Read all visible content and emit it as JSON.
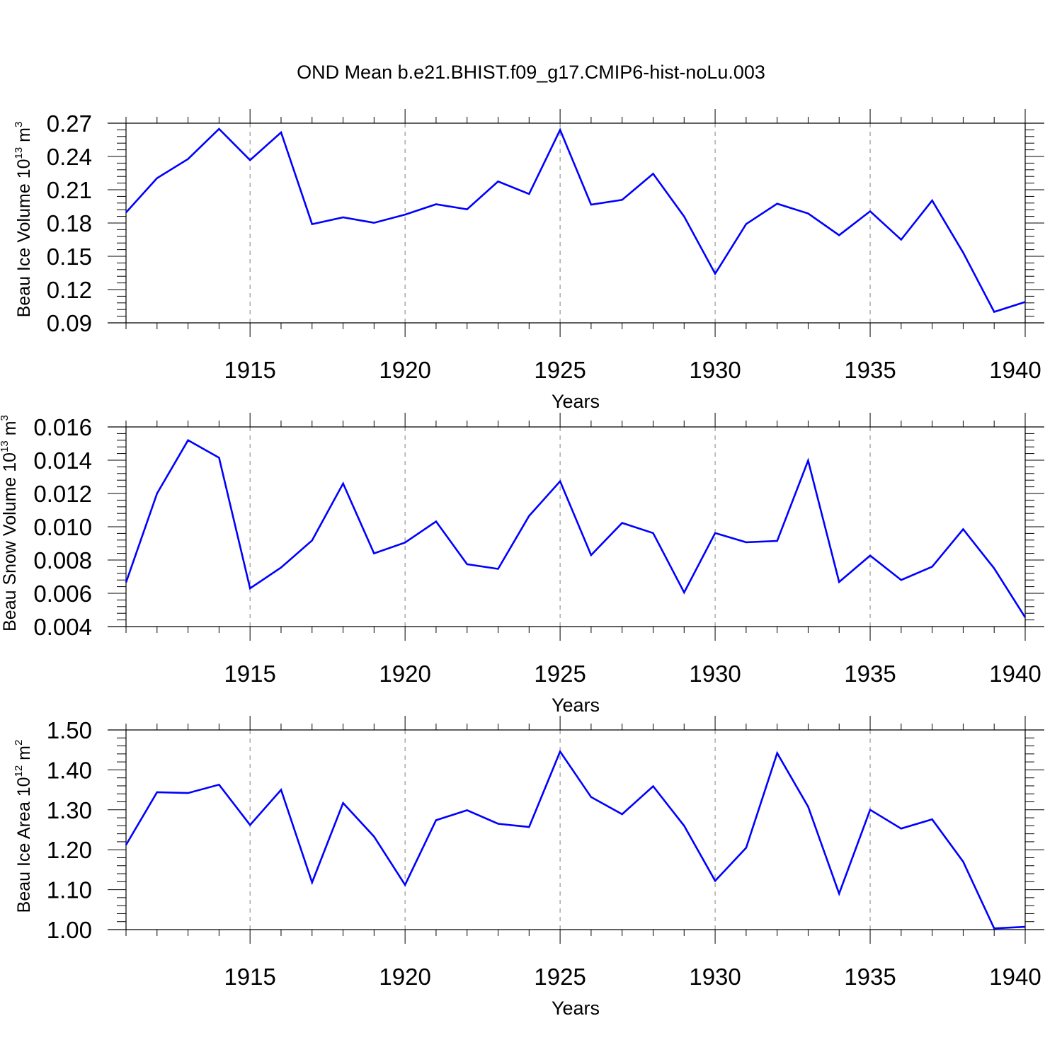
{
  "title": "OND Mean b.e21.BHIST.f09_g17.CMIP6-hist-noLu.003",
  "colors": {
    "line": "#0000ff",
    "axis": "#000000",
    "grid": "#808080"
  },
  "chart_data": [
    {
      "type": "line",
      "ylabel": {
        "main": "Beau Ice Volume 10",
        "exp": "13",
        "unit": " m",
        "unit_exp": "3"
      },
      "xlabel": "Years",
      "xlim": [
        1911,
        1940
      ],
      "xticks": [
        1915,
        1920,
        1925,
        1930,
        1935,
        1940
      ],
      "ylim": [
        0.09,
        0.27
      ],
      "yticks": [
        0.09,
        0.12,
        0.15,
        0.18,
        0.21,
        0.24,
        0.27
      ],
      "ytick_labels": [
        "0.09",
        "0.12",
        "0.15",
        "0.18",
        "0.21",
        "0.24",
        "0.27"
      ],
      "grid": "vertical dashed at major x ticks",
      "x": [
        1911,
        1912,
        1913,
        1914,
        1915,
        1916,
        1917,
        1918,
        1919,
        1920,
        1921,
        1922,
        1923,
        1924,
        1925,
        1926,
        1927,
        1928,
        1929,
        1930,
        1931,
        1932,
        1933,
        1934,
        1935,
        1936,
        1937,
        1938,
        1939,
        1940
      ],
      "values": [
        0.1895,
        0.2205,
        0.2377,
        0.2648,
        0.2367,
        0.2617,
        0.179,
        0.1851,
        0.1802,
        0.1876,
        0.1969,
        0.1924,
        0.2175,
        0.2062,
        0.264,
        0.1966,
        0.2009,
        0.2244,
        0.1859,
        0.1343,
        0.1791,
        0.1974,
        0.1886,
        0.169,
        0.1906,
        0.165,
        0.2003,
        0.1533,
        0.0999,
        0.1088
      ]
    },
    {
      "type": "line",
      "ylabel": {
        "main": "Beau Snow Volume 10",
        "exp": "13",
        "unit": " m",
        "unit_exp": "3"
      },
      "xlabel": "Years",
      "xlim": [
        1911,
        1940
      ],
      "xticks": [
        1915,
        1920,
        1925,
        1930,
        1935,
        1940
      ],
      "ylim": [
        0.004,
        0.016
      ],
      "yticks": [
        0.004,
        0.006,
        0.008,
        0.01,
        0.012,
        0.014,
        0.016
      ],
      "ytick_labels": [
        "0.004",
        "0.006",
        "0.008",
        "0.010",
        "0.012",
        "0.014",
        "0.016"
      ],
      "grid": "vertical dashed at major x ticks",
      "x": [
        1911,
        1912,
        1913,
        1914,
        1915,
        1916,
        1917,
        1918,
        1919,
        1920,
        1921,
        1922,
        1923,
        1924,
        1925,
        1926,
        1927,
        1928,
        1929,
        1930,
        1931,
        1932,
        1933,
        1934,
        1935,
        1936,
        1937,
        1938,
        1939,
        1940
      ],
      "values": [
        0.00665,
        0.012,
        0.0152,
        0.01415,
        0.0063,
        0.00755,
        0.00918,
        0.0126,
        0.0084,
        0.00905,
        0.01032,
        0.00775,
        0.00747,
        0.01065,
        0.01273,
        0.0083,
        0.01023,
        0.00962,
        0.00605,
        0.00962,
        0.00907,
        0.00915,
        0.01398,
        0.00668,
        0.00827,
        0.0068,
        0.0076,
        0.00985,
        0.0075,
        0.00455
      ]
    },
    {
      "type": "line",
      "ylabel": {
        "main": "Beau Ice Area 10",
        "exp": "12",
        "unit": " m",
        "unit_exp": "2"
      },
      "xlabel": "Years",
      "xlim": [
        1911,
        1940
      ],
      "xticks": [
        1915,
        1920,
        1925,
        1930,
        1935,
        1940
      ],
      "ylim": [
        1.0,
        1.5
      ],
      "yticks": [
        1.0,
        1.1,
        1.2,
        1.3,
        1.4,
        1.5
      ],
      "ytick_labels": [
        "1.00",
        "1.10",
        "1.20",
        "1.30",
        "1.40",
        "1.50"
      ],
      "grid": "vertical dashed at major x ticks",
      "x": [
        1911,
        1912,
        1913,
        1914,
        1915,
        1916,
        1917,
        1918,
        1919,
        1920,
        1921,
        1922,
        1923,
        1924,
        1925,
        1926,
        1927,
        1928,
        1929,
        1930,
        1931,
        1932,
        1933,
        1934,
        1935,
        1936,
        1937,
        1938,
        1939,
        1940
      ],
      "values": [
        1.212,
        1.344,
        1.342,
        1.363,
        1.262,
        1.35,
        1.118,
        1.317,
        1.233,
        1.112,
        1.274,
        1.299,
        1.265,
        1.257,
        1.446,
        1.332,
        1.289,
        1.359,
        1.26,
        1.122,
        1.205,
        1.442,
        1.308,
        1.09,
        1.3,
        1.253,
        1.276,
        1.17,
        1.003,
        1.007
      ]
    }
  ]
}
